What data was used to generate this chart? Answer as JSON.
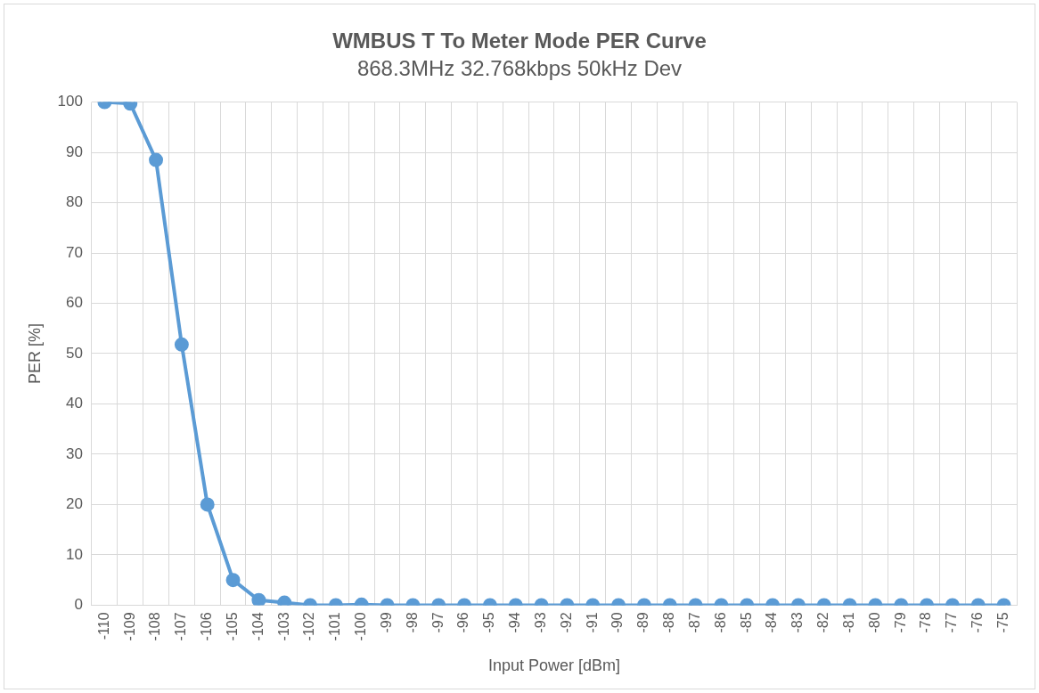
{
  "chart_data": {
    "type": "line",
    "title": "WMBUS T To Meter Mode PER Curve",
    "subtitle": "868.3MHz 32.768kbps 50kHz Dev",
    "xlabel": "Input Power [dBm]",
    "ylabel": "PER [%]",
    "categories": [
      "-110",
      "-109",
      "-108",
      "-107",
      "-106",
      "-105",
      "-104",
      "-103",
      "-102",
      "-101",
      "-100",
      "-99",
      "-98",
      "-97",
      "-96",
      "-95",
      "-94",
      "-93",
      "-92",
      "-91",
      "-90",
      "-89",
      "-88",
      "-87",
      "-86",
      "-85",
      "-84",
      "-83",
      "-82",
      "-81",
      "-80",
      "-79",
      "-78",
      "-77",
      "-76",
      "-75"
    ],
    "series": [
      {
        "color": "#5b9bd5",
        "values": [
          100,
          99.7,
          88.5,
          51.8,
          20,
          5,
          1,
          0.5,
          0,
          0,
          0.1,
          0,
          0,
          0,
          0,
          0,
          0,
          0,
          0,
          0,
          0,
          0,
          0,
          0,
          0,
          0,
          0,
          0,
          0,
          0,
          0,
          0,
          0,
          0,
          0,
          0
        ]
      }
    ],
    "ylim": [
      0,
      100
    ],
    "yticks": [
      0,
      10,
      20,
      30,
      40,
      50,
      60,
      70,
      80,
      90,
      100
    ],
    "grid": true,
    "legend": false,
    "marker": "circle",
    "line_style": "solid"
  }
}
